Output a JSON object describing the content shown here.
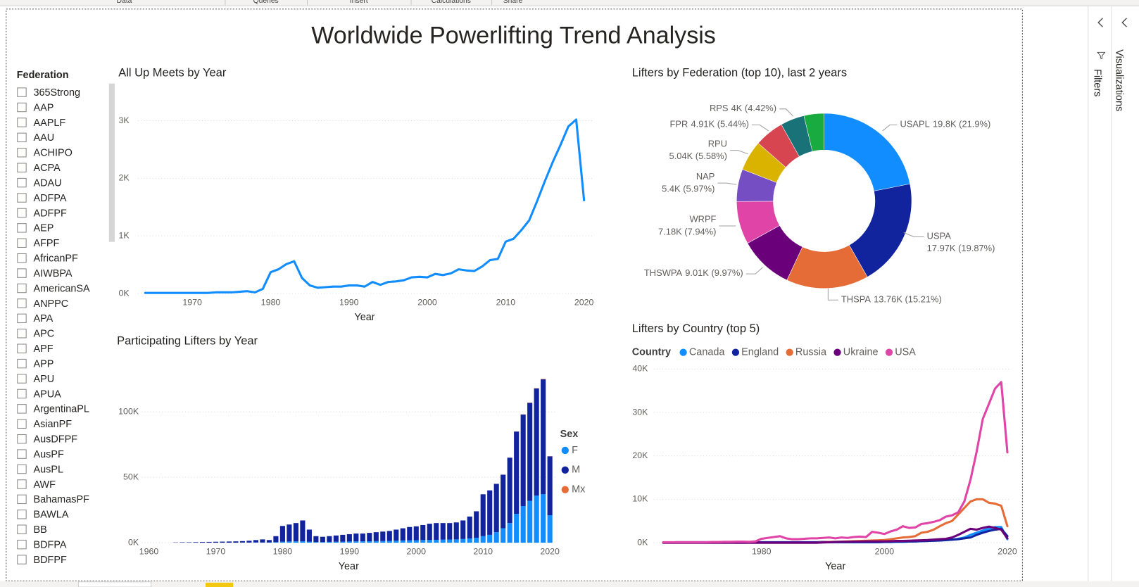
{
  "ribbon": [
    "Data",
    "Queries",
    "Insert",
    "Calculations",
    "Share"
  ],
  "report_title": "Worldwide Powerlifting Trend Analysis",
  "slicer": {
    "title": "Federation",
    "items": [
      "365Strong",
      "AAP",
      "AAPLF",
      "AAU",
      "ACHIPO",
      "ACPA",
      "ADAU",
      "ADFPA",
      "ADFPF",
      "AEP",
      "AFPF",
      "AfricanPF",
      "AIWBPA",
      "AmericanSA",
      "ANPPC",
      "APA",
      "APC",
      "APF",
      "APP",
      "APU",
      "APUA",
      "ArgentinaPL",
      "AsianPF",
      "AusDFPF",
      "AusPF",
      "AusPL",
      "AWF",
      "BahamasPF",
      "BAWLA",
      "BB",
      "BDFPA",
      "BDFPF"
    ]
  },
  "panes": [
    "Filters",
    "Visualizations"
  ],
  "chart_data": [
    {
      "type": "line",
      "title": "All Up Meets by Year",
      "x_label": "Year",
      "color": "#118DFF",
      "grid": true,
      "x": [
        1964,
        1965,
        1966,
        1967,
        1968,
        1969,
        1970,
        1971,
        1972,
        1973,
        1974,
        1975,
        1976,
        1977,
        1978,
        1979,
        1980,
        1981,
        1982,
        1983,
        1984,
        1985,
        1986,
        1987,
        1988,
        1989,
        1990,
        1991,
        1992,
        1993,
        1994,
        1995,
        1996,
        1997,
        1998,
        1999,
        2000,
        2001,
        2002,
        2003,
        2004,
        2005,
        2006,
        2007,
        2008,
        2009,
        2010,
        2011,
        2012,
        2013,
        2014,
        2015,
        2016,
        2017,
        2018,
        2019,
        2020
      ],
      "values": [
        10,
        10,
        10,
        10,
        10,
        10,
        10,
        10,
        10,
        20,
        20,
        20,
        30,
        40,
        20,
        80,
        370,
        420,
        510,
        560,
        270,
        140,
        100,
        110,
        120,
        120,
        140,
        140,
        120,
        200,
        150,
        200,
        210,
        230,
        280,
        290,
        280,
        340,
        320,
        350,
        420,
        400,
        390,
        470,
        580,
        600,
        900,
        950,
        1100,
        1270,
        1600,
        1950,
        2280,
        2580,
        2900,
        3020,
        1620
      ],
      "xlim": [
        1964,
        2020
      ],
      "xticks": [
        1970,
        1980,
        1990,
        2000,
        2010,
        2020
      ],
      "ylim": [
        0,
        3200
      ],
      "yticks": [
        {
          "value": 0,
          "label": "0K"
        },
        {
          "value": 1000,
          "label": "1K"
        },
        {
          "value": 2000,
          "label": "2K"
        },
        {
          "value": 3000,
          "label": "3K"
        }
      ]
    },
    {
      "type": "bar",
      "stacked": true,
      "title": "Participating Lifters by Year",
      "x_label": "Year",
      "legend_title": "Sex",
      "grid": true,
      "x": [
        1964,
        1965,
        1966,
        1967,
        1968,
        1969,
        1970,
        1971,
        1972,
        1973,
        1974,
        1975,
        1976,
        1977,
        1978,
        1979,
        1980,
        1981,
        1982,
        1983,
        1984,
        1985,
        1986,
        1987,
        1988,
        1989,
        1990,
        1991,
        1992,
        1993,
        1994,
        1995,
        1996,
        1997,
        1998,
        1999,
        2000,
        2001,
        2002,
        2003,
        2004,
        2005,
        2006,
        2007,
        2008,
        2009,
        2010,
        2011,
        2012,
        2013,
        2014,
        2015,
        2016,
        2017,
        2018,
        2019,
        2020
      ],
      "series": [
        {
          "name": "F",
          "color": "#118DFF",
          "values": [
            0,
            0,
            0,
            0,
            0,
            0,
            0,
            0,
            0,
            0,
            100,
            100,
            200,
            200,
            200,
            400,
            800,
            900,
            1000,
            1100,
            800,
            500,
            500,
            600,
            700,
            800,
            900,
            1000,
            1000,
            1100,
            1200,
            1300,
            1400,
            1500,
            1700,
            1800,
            1900,
            2000,
            2100,
            2200,
            2300,
            2400,
            2500,
            2800,
            3200,
            3800,
            5000,
            6000,
            8000,
            11000,
            15000,
            22000,
            28000,
            32000,
            36000,
            37000,
            21000
          ]
        },
        {
          "name": "M",
          "color": "#12239E",
          "values": [
            200,
            300,
            300,
            400,
            500,
            600,
            700,
            800,
            900,
            1000,
            1100,
            1400,
            1800,
            2300,
            1800,
            4600,
            12000,
            13000,
            14000,
            15900,
            9200,
            4500,
            4000,
            4400,
            4800,
            5200,
            5600,
            6000,
            6000,
            6400,
            6800,
            7200,
            7600,
            8500,
            9300,
            10200,
            10600,
            11500,
            12400,
            12800,
            12700,
            12600,
            13000,
            14200,
            16800,
            20200,
            32000,
            34000,
            37000,
            41000,
            50000,
            63000,
            70000,
            75000,
            82000,
            88000,
            45000
          ]
        },
        {
          "name": "Mx",
          "color": "#E66C37",
          "values": [
            0,
            0,
            0,
            0,
            0,
            0,
            0,
            0,
            0,
            0,
            0,
            0,
            0,
            0,
            0,
            0,
            0,
            0,
            0,
            0,
            0,
            0,
            0,
            0,
            0,
            0,
            0,
            0,
            0,
            0,
            0,
            0,
            0,
            0,
            0,
            0,
            0,
            0,
            0,
            0,
            0,
            0,
            0,
            0,
            0,
            0,
            0,
            0,
            0,
            0,
            0,
            50,
            100,
            150,
            200,
            250,
            150
          ]
        }
      ],
      "xlim": [
        1959,
        2021
      ],
      "xticks": [
        1960,
        1970,
        1980,
        1990,
        2000,
        2010,
        2020
      ],
      "ylim": [
        0,
        135000
      ],
      "yticks": [
        {
          "value": 0,
          "label": "0K"
        },
        {
          "value": 50000,
          "label": "50K"
        },
        {
          "value": 100000,
          "label": "100K"
        }
      ]
    },
    {
      "type": "pie",
      "donut": true,
      "title": "Lifters by Federation (top 10), last 2 years",
      "categories": [
        "USAPL",
        "USPA",
        "THSPA",
        "THSWPA",
        "WRPF",
        "NAP",
        "RPU",
        "FPR",
        "RPS",
        null
      ],
      "values": [
        19800,
        17970,
        13760,
        9010,
        7180,
        5400,
        5040,
        4910,
        4000,
        3350
      ],
      "value_labels": [
        "19.8K (21.9%)",
        "17.97K (19.87%)",
        "13.76K (15.21%)",
        "9.01K (9.97%)",
        "7.18K (7.94%)",
        "5.4K (5.97%)",
        "5.04K (5.58%)",
        "4.91K (5.44%)",
        "4K (4.42%)",
        null
      ],
      "colors": [
        "#118DFF",
        "#12239E",
        "#E66C37",
        "#6B007B",
        "#E044A7",
        "#744EC2",
        "#D9B300",
        "#D64550",
        "#197278",
        "#1AAB40"
      ]
    },
    {
      "type": "line",
      "title": "Lifters by Country (top 5)",
      "x_label": "Year",
      "legend_title": "Country",
      "grid": true,
      "x": [
        1964,
        1965,
        1966,
        1967,
        1968,
        1969,
        1970,
        1971,
        1972,
        1973,
        1974,
        1975,
        1976,
        1977,
        1978,
        1979,
        1980,
        1981,
        1982,
        1983,
        1984,
        1985,
        1986,
        1987,
        1988,
        1989,
        1990,
        1991,
        1992,
        1993,
        1994,
        1995,
        1996,
        1997,
        1998,
        1999,
        2000,
        2001,
        2002,
        2003,
        2004,
        2005,
        2006,
        2007,
        2008,
        2009,
        2010,
        2011,
        2012,
        2013,
        2014,
        2015,
        2016,
        2017,
        2018,
        2019,
        2020
      ],
      "series": [
        {
          "name": "Canada",
          "color": "#118DFF",
          "values": [
            0,
            0,
            0,
            0,
            0,
            0,
            0,
            0,
            0,
            0,
            0,
            0,
            0,
            0,
            0,
            0,
            0,
            0,
            0,
            0,
            0,
            0,
            0,
            0,
            0,
            0,
            100,
            100,
            100,
            100,
            100,
            100,
            100,
            100,
            100,
            100,
            150,
            150,
            200,
            200,
            250,
            300,
            350,
            400,
            450,
            500,
            600,
            700,
            900,
            1200,
            1800,
            2300,
            2800,
            3200,
            3600,
            3600,
            800
          ]
        },
        {
          "name": "England",
          "color": "#12239E",
          "values": [
            null,
            null,
            100,
            100,
            100,
            100,
            100,
            100,
            100,
            100,
            100,
            100,
            100,
            100,
            100,
            100,
            100,
            100,
            100,
            100,
            100,
            100,
            100,
            100,
            100,
            100,
            150,
            150,
            150,
            150,
            150,
            150,
            150,
            150,
            150,
            150,
            200,
            200,
            250,
            250,
            300,
            300,
            350,
            400,
            450,
            500,
            600,
            700,
            800,
            1000,
            1200,
            1800,
            2300,
            2700,
            3000,
            3200,
            1500
          ]
        },
        {
          "name": "Russia",
          "color": "#E66C37",
          "values": [
            0,
            0,
            0,
            0,
            0,
            0,
            0,
            0,
            0,
            0,
            0,
            0,
            0,
            0,
            0,
            0,
            0,
            0,
            0,
            0,
            0,
            0,
            0,
            0,
            0,
            0,
            100,
            150,
            200,
            250,
            300,
            350,
            400,
            450,
            500,
            550,
            600,
            800,
            1000,
            1200,
            1300,
            1500,
            2300,
            2500,
            3000,
            3800,
            4500,
            5000,
            6500,
            8000,
            9500,
            10000,
            10000,
            9200,
            9000,
            8500,
            3800
          ]
        },
        {
          "name": "Ukraine",
          "color": "#6B007B",
          "values": [
            0,
            0,
            0,
            0,
            0,
            0,
            0,
            0,
            0,
            0,
            0,
            0,
            0,
            0,
            0,
            0,
            0,
            0,
            0,
            0,
            0,
            0,
            0,
            0,
            0,
            0,
            50,
            100,
            150,
            200,
            200,
            250,
            250,
            300,
            300,
            300,
            300,
            350,
            400,
            400,
            450,
            500,
            550,
            600,
            700,
            800,
            900,
            1200,
            1800,
            2500,
            3200,
            3000,
            3400,
            3700,
            3400,
            3000,
            1000
          ]
        },
        {
          "name": "USA",
          "color": "#E044A7",
          "values": [
            100,
            100,
            100,
            100,
            100,
            100,
            100,
            100,
            150,
            150,
            200,
            200,
            250,
            250,
            200,
            300,
            900,
            1100,
            1300,
            1500,
            1000,
            800,
            800,
            900,
            1000,
            1000,
            1100,
            1200,
            1000,
            1200,
            1100,
            1300,
            1400,
            1300,
            2500,
            2300,
            2000,
            2600,
            3000,
            3800,
            3400,
            3500,
            4300,
            4500,
            4800,
            5200,
            6000,
            6300,
            7000,
            9500,
            14500,
            21000,
            28500,
            32000,
            35500,
            37000,
            20800
          ]
        }
      ],
      "xlim": [
        1964,
        2020
      ],
      "xticks": [
        1980,
        2000,
        2020
      ],
      "ylim": [
        0,
        40000
      ],
      "yticks": [
        {
          "value": 0,
          "label": "0K"
        },
        {
          "value": 10000,
          "label": "10K"
        },
        {
          "value": 20000,
          "label": "20K"
        },
        {
          "value": 30000,
          "label": "30K"
        },
        {
          "value": 40000,
          "label": "40K"
        }
      ]
    }
  ]
}
